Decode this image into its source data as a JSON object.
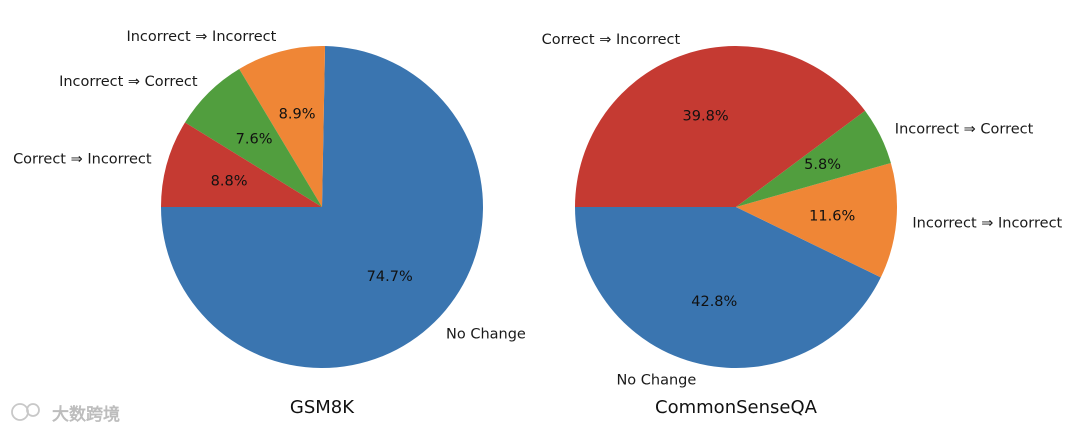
{
  "chart_data": [
    {
      "type": "pie",
      "title": "GSM8K",
      "slices": [
        {
          "label": "No Change",
          "value": 74.7,
          "pct_label": "74.7%",
          "color": "#3a75b0"
        },
        {
          "label": "Incorrect ⇒ Incorrect",
          "value": 8.9,
          "pct_label": "8.9%",
          "color": "#ef8636"
        },
        {
          "label": "Incorrect ⇒ Correct",
          "value": 7.6,
          "pct_label": "7.6%",
          "color": "#519e3e"
        },
        {
          "label": "Correct ⇒ Incorrect",
          "value": 8.8,
          "pct_label": "8.8%",
          "color": "#c53a32"
        }
      ],
      "start_angle_deg": 180,
      "direction": "counterclockwise"
    },
    {
      "type": "pie",
      "title": "CommonSenseQA",
      "slices": [
        {
          "label": "No Change",
          "value": 42.8,
          "pct_label": "42.8%",
          "color": "#3a75b0"
        },
        {
          "label": "Incorrect ⇒ Incorrect",
          "value": 11.6,
          "pct_label": "11.6%",
          "color": "#ef8636"
        },
        {
          "label": "Incorrect ⇒ Correct",
          "value": 5.8,
          "pct_label": "5.8%",
          "color": "#519e3e"
        },
        {
          "label": "Correct ⇒ Incorrect",
          "value": 39.8,
          "pct_label": "39.8%",
          "color": "#c53a32"
        }
      ],
      "start_angle_deg": 180,
      "direction": "counterclockwise"
    }
  ],
  "watermark": {
    "text": "大数跨境",
    "icon": "wechat-logo-icon"
  }
}
